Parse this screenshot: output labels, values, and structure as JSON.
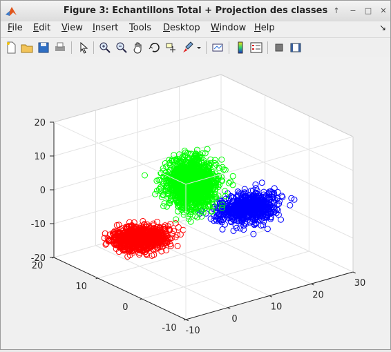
{
  "window": {
    "title": "Figure 3: Echantillons Total + Projection des classes",
    "buttons": [
      "↑",
      "−",
      "□",
      "✕"
    ]
  },
  "menubar": {
    "items": [
      {
        "label": "File",
        "key": "F",
        "rest": "ile"
      },
      {
        "label": "Edit",
        "key": "E",
        "rest": "dit"
      },
      {
        "label": "View",
        "key": "V",
        "rest": "iew"
      },
      {
        "label": "Insert",
        "key": "I",
        "rest": "nsert"
      },
      {
        "label": "Tools",
        "key": "T",
        "rest": "ools"
      },
      {
        "label": "Desktop",
        "key": "D",
        "rest": "esktop"
      },
      {
        "label": "Window",
        "key": "W",
        "rest": "indow"
      },
      {
        "label": "Help",
        "key": "H",
        "rest": "elp"
      }
    ],
    "dock_arrow": "↘"
  },
  "toolbar": {
    "icons": [
      "new-file-icon",
      "open-folder-icon",
      "save-icon",
      "print-icon",
      "pointer-icon",
      "zoom-in-icon",
      "zoom-out-icon",
      "pan-hand-icon",
      "rotate-3d-icon",
      "data-cursor-icon",
      "brush-icon",
      "brush-dropdown-icon",
      "link-plot-icon",
      "colorbar-icon",
      "legend-icon",
      "hide-plot-tools-icon",
      "show-plot-tools-icon"
    ]
  },
  "chart_data": {
    "type": "scatter",
    "title": "",
    "projection": "3d",
    "xlim": [
      -10,
      30
    ],
    "ylim": [
      -10,
      20
    ],
    "zlim": [
      -20,
      20
    ],
    "xticks": [
      "-10",
      "0",
      "10",
      "20",
      "30"
    ],
    "yticks": [
      "-10",
      "0",
      "10",
      "20"
    ],
    "zticks": [
      "-20",
      "-10",
      "0",
      "10",
      "20"
    ],
    "grid": true,
    "marker": "open-circle",
    "series": [
      {
        "color": "#0000ff",
        "center": [
          15,
          0,
          -2
        ],
        "spread": [
          6,
          3,
          3
        ],
        "count": 700
      },
      {
        "color": "#ff0000",
        "center": [
          -5,
          5,
          -7
        ],
        "spread": [
          5,
          3,
          2
        ],
        "count": 900
      },
      {
        "color": "#00ff00",
        "center": [
          6,
          4,
          6
        ],
        "spread": [
          4,
          3,
          6
        ],
        "count": 1600
      }
    ]
  }
}
